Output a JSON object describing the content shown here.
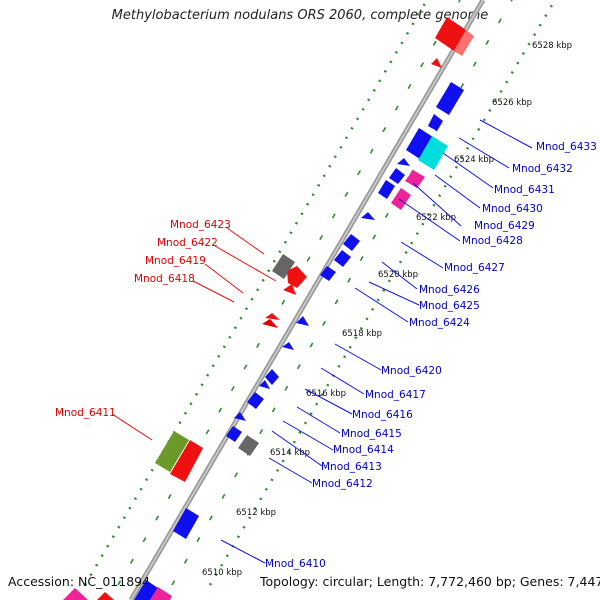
{
  "map": {
    "title": "Methylobacterium nodulans ORS 2060, complete genome",
    "accession": "Accession: NC_011894",
    "summary": "Topology: circular; Length: 7,772,460 bp; Genes: 7,447"
  },
  "ticks": [
    "6510 kbp",
    "6512 kbp",
    "6514 kbp",
    "6516 kbp",
    "6518 kbp",
    "6520 kbp",
    "6522 kbp",
    "6524 kbp",
    "6526 kbp",
    "6528 kbp"
  ],
  "genes_forward": [
    "Mnod_6411",
    "Mnod_6418",
    "Mnod_6419",
    "Mnod_6422",
    "Mnod_6423"
  ],
  "genes_reverse": [
    "Mnod_6410",
    "Mnod_6412",
    "Mnod_6413",
    "Mnod_6414",
    "Mnod_6415",
    "Mnod_6416",
    "Mnod_6417",
    "Mnod_6420",
    "Mnod_6424",
    "Mnod_6425",
    "Mnod_6426",
    "Mnod_6427",
    "Mnod_6428",
    "Mnod_6429",
    "Mnod_6430",
    "Mnod_6431",
    "Mnod_6432",
    "Mnod_6433"
  ],
  "colors": {
    "backbone": "#a0a0a0",
    "tick_dots": "#2e8b2e",
    "forward_cds": "#ee1111",
    "reverse_cds": "#1010ee",
    "forward_label": "#dd0000",
    "reverse_label": "#0000cc",
    "rna": "#00dddd",
    "pseudo": "#ee2299",
    "other": "#777777",
    "olive": "#6b9a2a"
  }
}
